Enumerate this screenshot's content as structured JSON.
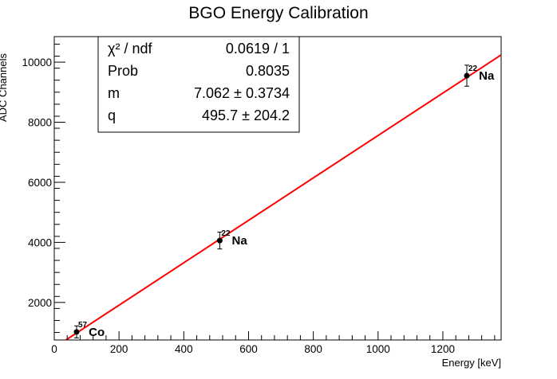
{
  "chart_data": {
    "type": "scatter",
    "title": "BGO Energy Calibration",
    "xlabel": "Energy [keV]",
    "ylabel": "ADC Channels",
    "xlim": [
      0,
      1380
    ],
    "ylim": [
      750,
      10850
    ],
    "x_ticks": [
      0,
      200,
      400,
      600,
      800,
      1000,
      1200
    ],
    "y_ticks": [
      2000,
      4000,
      6000,
      8000,
      10000
    ],
    "grid": false,
    "series": [
      {
        "points": [
          {
            "x": 69,
            "y": 1020,
            "yerr": 200,
            "label_mass": "57",
            "label_element": "Co"
          },
          {
            "x": 511,
            "y": 4060,
            "yerr": 280,
            "label_mass": "22",
            "label_element": "Na"
          },
          {
            "x": 1274,
            "y": 9550,
            "yerr": 350,
            "label_mass": "22",
            "label_element": "Na"
          }
        ]
      }
    ],
    "fit": {
      "type": "linear",
      "slope": 7.062,
      "intercept": 495.7,
      "color": "#ff0000"
    },
    "stats_box": [
      {
        "name": "χ² / ndf",
        "value": "0.0619 / 1"
      },
      {
        "name": "Prob",
        "value": "0.8035"
      },
      {
        "name": "m",
        "value": "7.062 ± 0.3734"
      },
      {
        "name": "q",
        "value": "495.7 ± 204.2"
      }
    ]
  }
}
